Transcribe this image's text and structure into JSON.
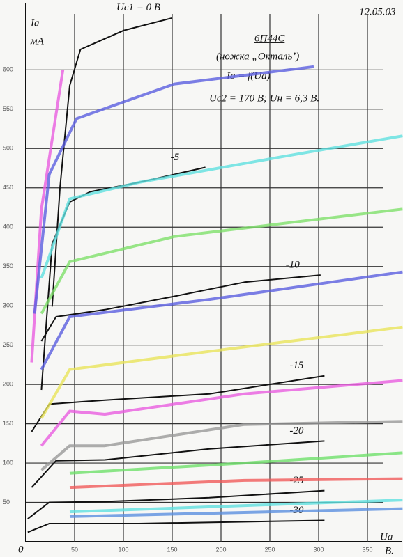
{
  "chart_data": {
    "type": "line",
    "date": "12.05.03",
    "title": "6П44С",
    "subtitle": "(ножка „Октальʼ)",
    "formula": "Ia = f(Ua)",
    "conditions": "Uc2 = 170 В; Uн = 6,3 В.",
    "y_label": "Ia",
    "y_unit": "мА",
    "x_label": "Ua",
    "x_unit": "В.",
    "origin_label": "0",
    "xlim": [
      0,
      385
    ],
    "ylim": [
      0,
      680
    ],
    "xticks": [
      50,
      100,
      150,
      200,
      250,
      300,
      350
    ],
    "yticks": [
      50,
      100,
      150,
      200,
      250,
      300,
      350,
      400,
      450,
      500,
      550,
      600
    ],
    "grid": true,
    "series": [
      {
        "name": "Uc1 = 0 В",
        "color": "#111111",
        "x": [
          27,
          35,
          45,
          56,
          100,
          150
        ],
        "values": [
          299,
          450,
          580,
          626,
          650,
          666
        ]
      },
      {
        "name": "-5",
        "color": "#111111",
        "x": [
          16,
          27,
          45,
          66,
          116,
          184
        ],
        "values": [
          193,
          379,
          432,
          445,
          457,
          476
        ]
      },
      {
        "name": "-10",
        "color": "#111111",
        "x": [
          16,
          31,
          81,
          152,
          224,
          302
        ],
        "values": [
          255,
          286,
          295,
          312,
          330,
          339
        ]
      },
      {
        "name": "-15",
        "color": "#111111",
        "x": [
          6,
          24,
          81,
          188,
          306
        ],
        "values": [
          140,
          175,
          180,
          188,
          211
        ]
      },
      {
        "name": "-20",
        "color": "#111111",
        "x": [
          6,
          31,
          81,
          188,
          306
        ],
        "values": [
          69,
          103,
          104,
          118,
          128
        ]
      },
      {
        "name": "-25",
        "color": "#111111",
        "x": [
          2,
          24,
          81,
          188,
          306
        ],
        "values": [
          29,
          50,
          51,
          56,
          65
        ]
      },
      {
        "name": "-30",
        "color": "#111111",
        "x": [
          2,
          24,
          116,
          306
        ],
        "values": [
          12,
          23,
          23,
          27
        ]
      },
      {
        "color": "#e85ce0",
        "x": [
          6,
          16,
          38
        ],
        "values": [
          228,
          423,
          600
        ]
      },
      {
        "color": "#5a5ee0",
        "x": [
          9,
          24,
          52,
          152,
          295
        ],
        "values": [
          290,
          467,
          538,
          582,
          604
        ]
      },
      {
        "color": "#5fe0e0",
        "x": [
          16,
          45,
          116,
          260,
          386
        ],
        "values": [
          335,
          436,
          457,
          489,
          516
        ]
      },
      {
        "color": "#7ee06a",
        "x": [
          16,
          45,
          152,
          386
        ],
        "values": [
          290,
          356,
          388,
          423
        ]
      },
      {
        "color": "#5a5ee0",
        "x": [
          16,
          45,
          188,
          386
        ],
        "values": [
          219,
          286,
          308,
          343
        ]
      },
      {
        "color": "#e8e45a",
        "x": [
          16,
          45,
          188,
          386
        ],
        "values": [
          157,
          219,
          242,
          273
        ]
      },
      {
        "color": "#e85ce0",
        "x": [
          16,
          45,
          81,
          224,
          386
        ],
        "values": [
          122,
          166,
          162,
          188,
          205
        ]
      },
      {
        "color": "#999999",
        "x": [
          16,
          45,
          81,
          224,
          386
        ],
        "values": [
          91,
          122,
          122,
          149,
          153
        ]
      },
      {
        "color": "#6ee06a",
        "x": [
          45,
          224,
          386
        ],
        "values": [
          87,
          100,
          113
        ]
      },
      {
        "color": "#f05a5a",
        "x": [
          45,
          224,
          386
        ],
        "values": [
          69,
          78,
          80
        ]
      },
      {
        "color": "#5fe0e0",
        "x": [
          45,
          386
        ],
        "values": [
          38,
          53
        ]
      },
      {
        "color": "#5a8ee0",
        "x": [
          45,
          386
        ],
        "values": [
          32,
          42
        ]
      }
    ]
  }
}
